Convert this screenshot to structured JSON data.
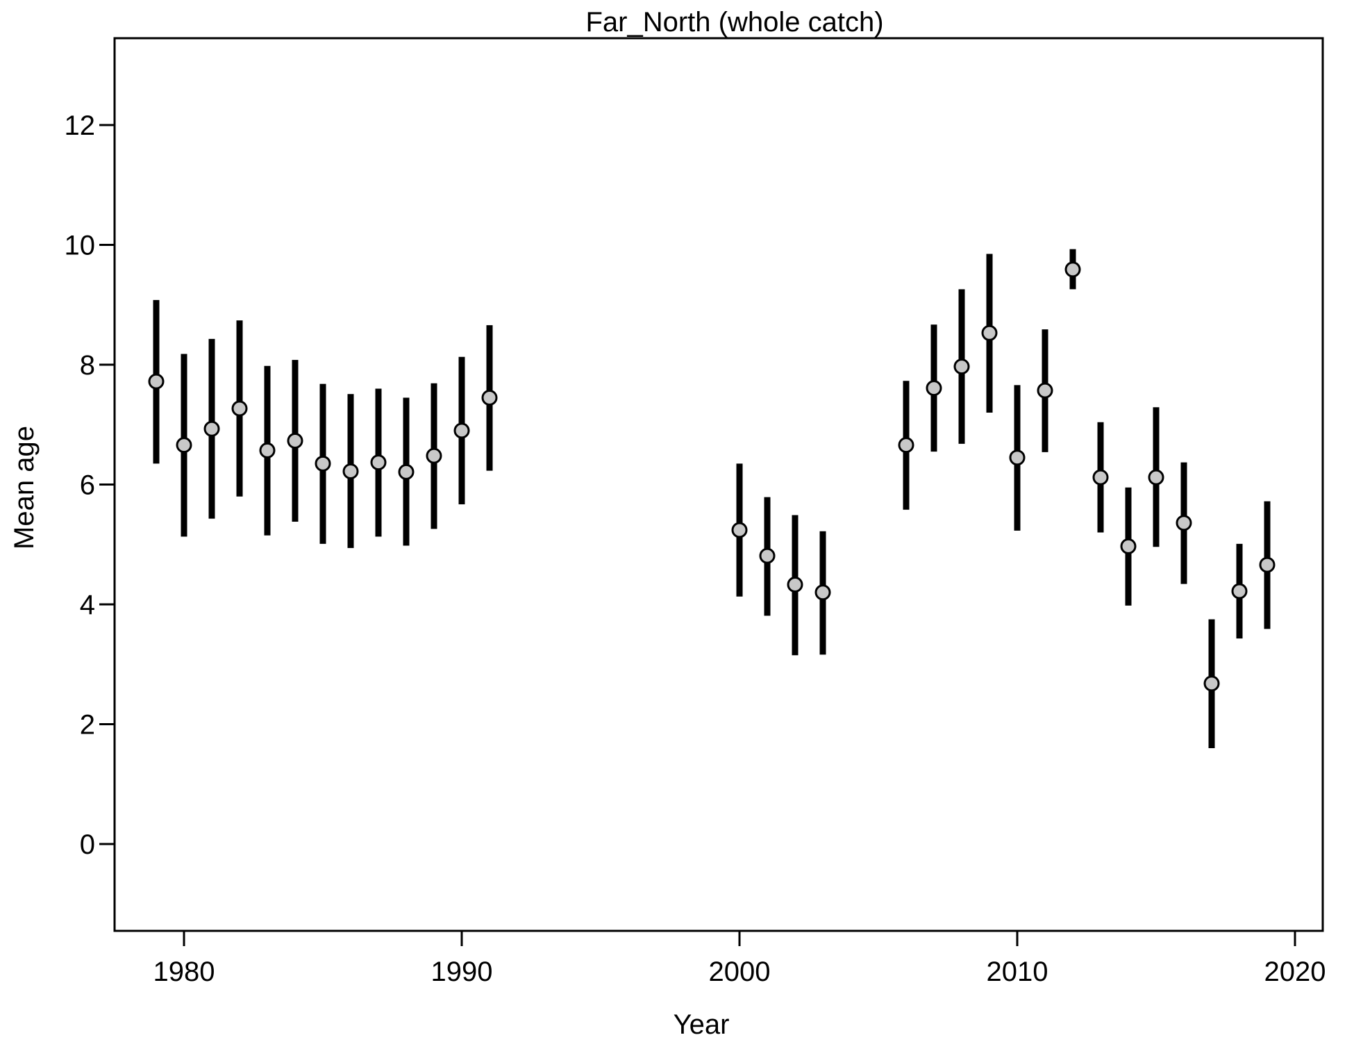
{
  "chart_data": {
    "type": "scatter",
    "title": "Far_North (whole catch)",
    "xlabel": "Year",
    "ylabel": "Mean age",
    "xlim": [
      1977.5,
      2021
    ],
    "ylim": [
      -1.45,
      13.45
    ],
    "x_ticks": [
      1980,
      1990,
      2000,
      2010,
      2020
    ],
    "y_ticks": [
      0,
      2,
      4,
      6,
      8,
      10,
      12
    ],
    "x_tick_labels": [
      "1980",
      "1990",
      "2000",
      "2010",
      "2020"
    ],
    "y_tick_labels": [
      "0",
      "2",
      "4",
      "6",
      "8",
      "10",
      "12"
    ],
    "grid": false,
    "legend": "none",
    "marker_fill": "#c8c8c8",
    "marker_edge": "#000000",
    "errorbar_color": "#000000",
    "points": [
      {
        "x": 1979,
        "y": 7.72,
        "lo": 6.35,
        "hi": 9.08
      },
      {
        "x": 1980,
        "y": 6.66,
        "lo": 5.13,
        "hi": 8.18
      },
      {
        "x": 1981,
        "y": 6.93,
        "lo": 5.43,
        "hi": 8.43
      },
      {
        "x": 1982,
        "y": 7.27,
        "lo": 5.8,
        "hi": 8.74
      },
      {
        "x": 1983,
        "y": 6.57,
        "lo": 5.15,
        "hi": 7.98
      },
      {
        "x": 1984,
        "y": 6.73,
        "lo": 5.38,
        "hi": 8.08
      },
      {
        "x": 1985,
        "y": 6.35,
        "lo": 5.01,
        "hi": 7.68
      },
      {
        "x": 1986,
        "y": 6.22,
        "lo": 4.94,
        "hi": 7.51
      },
      {
        "x": 1987,
        "y": 6.37,
        "lo": 5.13,
        "hi": 7.6
      },
      {
        "x": 1988,
        "y": 6.21,
        "lo": 4.98,
        "hi": 7.45
      },
      {
        "x": 1989,
        "y": 6.48,
        "lo": 5.26,
        "hi": 7.69
      },
      {
        "x": 1990,
        "y": 6.9,
        "lo": 5.67,
        "hi": 8.13
      },
      {
        "x": 1991,
        "y": 7.45,
        "lo": 6.23,
        "hi": 8.66
      },
      {
        "x": 2000,
        "y": 5.24,
        "lo": 4.13,
        "hi": 6.35
      },
      {
        "x": 2001,
        "y": 4.81,
        "lo": 3.81,
        "hi": 5.79
      },
      {
        "x": 2002,
        "y": 4.33,
        "lo": 3.15,
        "hi": 5.49
      },
      {
        "x": 2003,
        "y": 4.2,
        "lo": 3.16,
        "hi": 5.22
      },
      {
        "x": 2006,
        "y": 6.66,
        "lo": 5.58,
        "hi": 7.73
      },
      {
        "x": 2007,
        "y": 7.61,
        "lo": 6.55,
        "hi": 8.67
      },
      {
        "x": 2008,
        "y": 7.97,
        "lo": 6.68,
        "hi": 9.26
      },
      {
        "x": 2009,
        "y": 8.53,
        "lo": 7.2,
        "hi": 9.85
      },
      {
        "x": 2010,
        "y": 6.45,
        "lo": 5.23,
        "hi": 7.66
      },
      {
        "x": 2011,
        "y": 7.57,
        "lo": 6.54,
        "hi": 8.59
      },
      {
        "x": 2012,
        "y": 9.59,
        "lo": 9.26,
        "hi": 9.93
      },
      {
        "x": 2013,
        "y": 6.12,
        "lo": 5.2,
        "hi": 7.04
      },
      {
        "x": 2014,
        "y": 4.97,
        "lo": 3.98,
        "hi": 5.95
      },
      {
        "x": 2015,
        "y": 6.12,
        "lo": 4.96,
        "hi": 7.29
      },
      {
        "x": 2016,
        "y": 5.36,
        "lo": 4.34,
        "hi": 6.37
      },
      {
        "x": 2017,
        "y": 2.68,
        "lo": 1.6,
        "hi": 3.75
      },
      {
        "x": 2018,
        "y": 4.22,
        "lo": 3.43,
        "hi": 5.01
      },
      {
        "x": 2019,
        "y": 4.66,
        "lo": 3.59,
        "hi": 5.72
      }
    ]
  }
}
